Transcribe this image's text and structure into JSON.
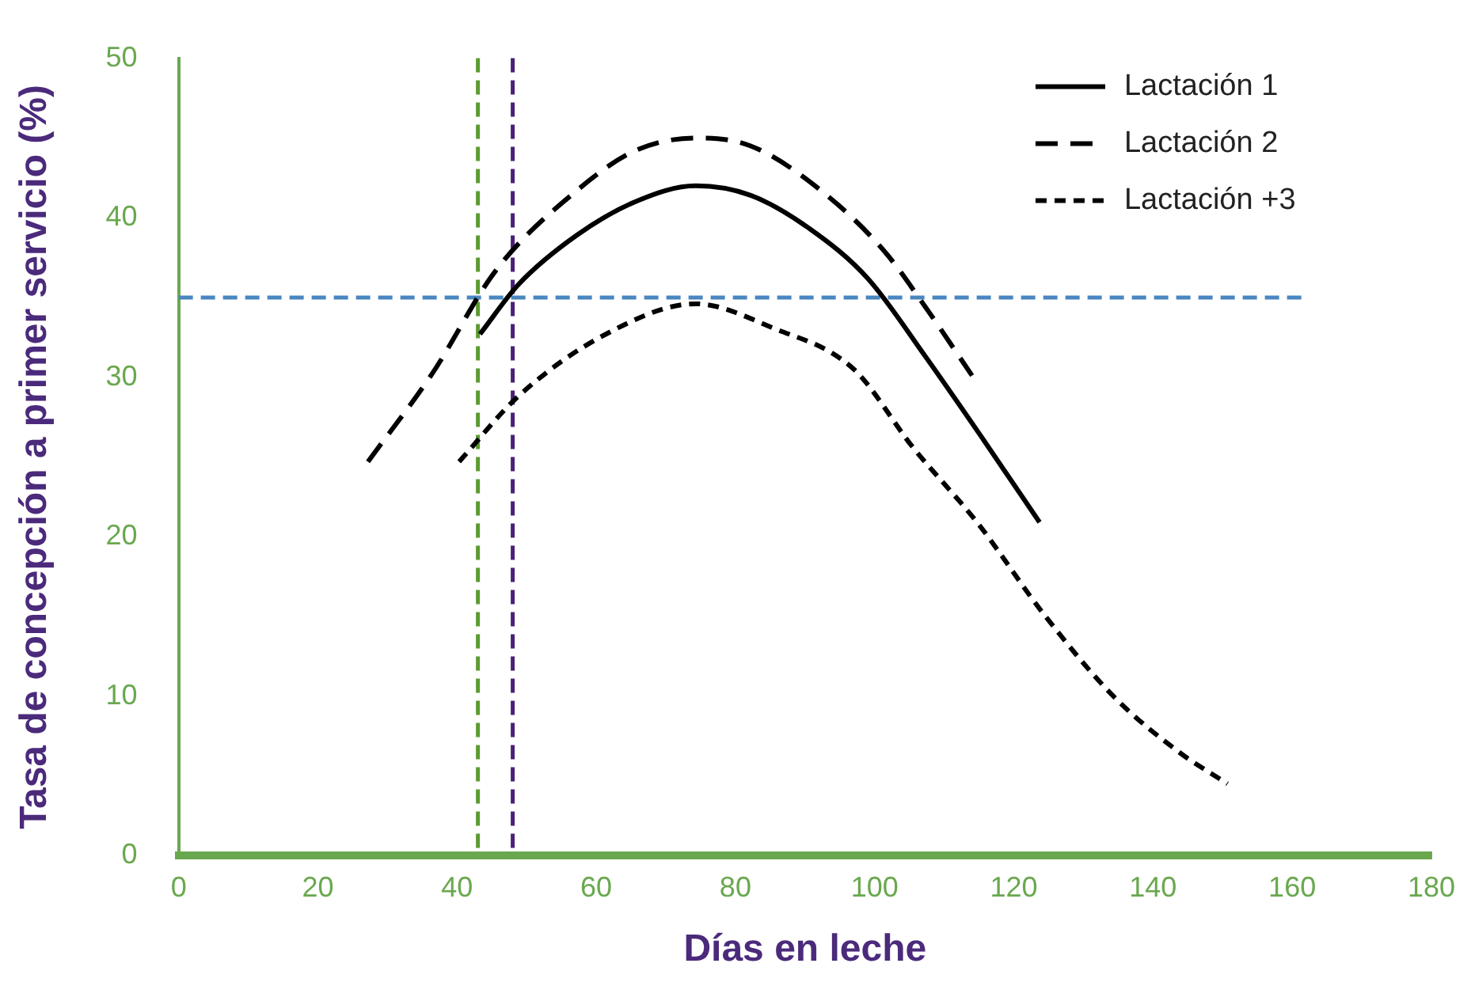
{
  "chart_data": {
    "type": "line",
    "xlabel": "Días en leche",
    "ylabel": "Tasa de concepción a primer servicio (%)",
    "xlim": [
      0,
      180
    ],
    "xticks": [
      0,
      20,
      40,
      60,
      80,
      100,
      120,
      140,
      160,
      180
    ],
    "ylim": [
      0,
      50
    ],
    "yticks": [
      0,
      10,
      20,
      30,
      40,
      50
    ],
    "grid": false,
    "legend": "top right",
    "marker": "none",
    "series": [
      {
        "name": "Lactación 1",
        "color": "#000000",
        "line_style": "solid",
        "x": [
          43.3,
          48.8,
          57.2,
          65.6,
          74.3,
          82.2,
          90.7,
          99,
          107.3,
          115.6,
          123.7
        ],
        "values": [
          32.7,
          35.8,
          38.9,
          41.0,
          42.0,
          41.4,
          39.3,
          36.2,
          31.3,
          26.1,
          20.9
        ]
      },
      {
        "name": "Lactación 2",
        "color": "#000000",
        "line_style": "dashed",
        "x": [
          27.2,
          36.4,
          45.6,
          57.2,
          65.6,
          74.3,
          82.2,
          92.3,
          101.4,
          107.3,
          114
        ],
        "values": [
          24.7,
          30.2,
          36.7,
          41.7,
          44.2,
          45.0,
          44.5,
          41.7,
          37.9,
          34.4,
          30.1
        ]
      },
      {
        "name": "Lactación +3",
        "color": "#000000",
        "line_style": "dotted",
        "x": [
          40.3,
          48.8,
          61.4,
          74.3,
          85.3,
          97,
          105.5,
          114.9,
          124.2,
          134.3,
          143.7,
          150.7
        ],
        "values": [
          24.7,
          28.8,
          32.7,
          34.6,
          33.1,
          30.5,
          25.6,
          20.8,
          15.2,
          10.0,
          6.5,
          4.5
        ]
      }
    ],
    "ref_lines": [
      {
        "axis": "x",
        "value": 43,
        "color": "#5b9b2f",
        "line_style": "dashed"
      },
      {
        "axis": "x",
        "value": 48,
        "color": "#4b2078",
        "line_style": "dashed"
      },
      {
        "axis": "y",
        "value": 35,
        "color": "#4a86c0",
        "line_style": "dashed"
      }
    ]
  }
}
